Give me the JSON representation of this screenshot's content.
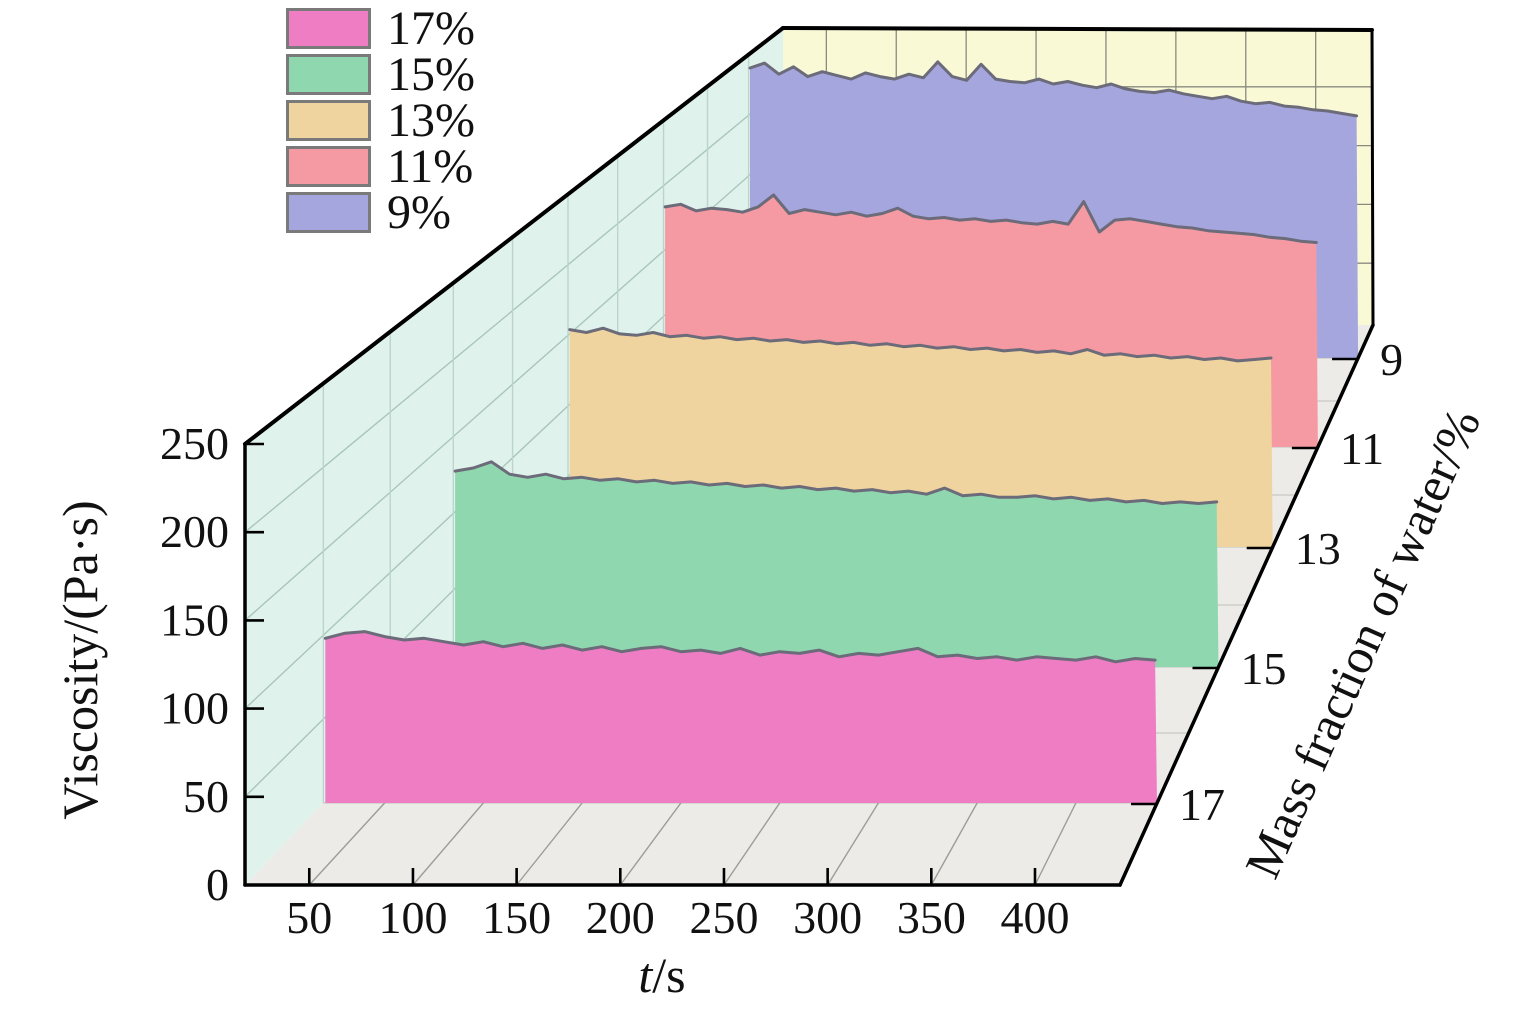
{
  "legend": {
    "items": [
      {
        "label": "17%",
        "color": "#EE7DC4"
      },
      {
        "label": "15%",
        "color": "#8FD7AF"
      },
      {
        "label": "13%",
        "color": "#F0D4A0"
      },
      {
        "label": "11%",
        "color": "#F59AA3"
      },
      {
        "label": "9%",
        "color": "#A6A6DF"
      }
    ]
  },
  "axes": {
    "x": {
      "title_italic": "t",
      "title_rest": "/s"
    },
    "y": {
      "title": "Viscosity/(Pa·s)"
    },
    "z": {
      "title": "Mass fraction of water/%"
    }
  },
  "chart_data": {
    "type": "area",
    "projection": "3d-waterfall-perspective",
    "xlabel": "t/s",
    "ylabel": "Viscosity/(Pa·s)",
    "zlabel": "Mass fraction of water/%",
    "x_range": [
      19,
      441
    ],
    "y_range": [
      0,
      250
    ],
    "x_ticks": [
      50,
      100,
      150,
      200,
      250,
      300,
      350,
      400
    ],
    "y_ticks": [
      0,
      50,
      100,
      150,
      200,
      250
    ],
    "z_ticks": [
      9,
      11,
      13,
      15,
      17
    ],
    "grid": true,
    "legend_position": "top-left",
    "t": [
      20,
      30,
      40,
      50,
      60,
      70,
      80,
      90,
      100,
      110,
      120,
      130,
      140,
      150,
      160,
      170,
      180,
      190,
      200,
      210,
      220,
      230,
      240,
      250,
      260,
      270,
      280,
      290,
      300,
      310,
      320,
      330,
      340,
      350,
      360,
      370,
      380,
      390,
      400,
      410,
      420,
      430,
      440
    ],
    "series": [
      {
        "name": "17%",
        "z": 17,
        "color": "#EE7DC4",
        "values": [
          98,
          101,
          102,
          99,
          97,
          98,
          96,
          94,
          96,
          93,
          95,
          92,
          94,
          91,
          93,
          90,
          92,
          93,
          90,
          91,
          89,
          92,
          88,
          90,
          89,
          91,
          87,
          89,
          88,
          90,
          92,
          87,
          88,
          86,
          87,
          85,
          87,
          86,
          85,
          87,
          84,
          86,
          85
        ]
      },
      {
        "name": "15%",
        "z": 15,
        "color": "#8FD7AF",
        "values": [
          127,
          129,
          133,
          125,
          123,
          125,
          122,
          123,
          121,
          122,
          120,
          121,
          119,
          120,
          118,
          119,
          117,
          118,
          116,
          117,
          115,
          116,
          114,
          115,
          113,
          114,
          112,
          116,
          111,
          112,
          110,
          110,
          111,
          109,
          110,
          108,
          109,
          107,
          108,
          106,
          107,
          106,
          107
        ]
      },
      {
        "name": "13%",
        "z": 13,
        "color": "#F0D4A0",
        "values": [
          153,
          151,
          154,
          150,
          149,
          151,
          148,
          149,
          147,
          148,
          146,
          147,
          145,
          146,
          144,
          145,
          143,
          144,
          142,
          143,
          141,
          142,
          140,
          141,
          139,
          140,
          138,
          139,
          137,
          138,
          136,
          139,
          135,
          136,
          134,
          135,
          133,
          134,
          132,
          133,
          131,
          132,
          133
        ]
      },
      {
        "name": "11%",
        "z": 11,
        "color": "#F59AA3",
        "values": [
          182,
          184,
          179,
          181,
          180,
          178,
          182,
          191,
          177,
          180,
          178,
          176,
          178,
          175,
          177,
          181,
          175,
          173,
          174,
          172,
          173,
          171,
          172,
          170,
          169,
          171,
          169,
          186,
          163,
          172,
          173,
          171,
          169,
          167,
          166,
          164,
          163,
          162,
          161,
          159,
          158,
          156,
          155
        ]
      },
      {
        "name": "9%",
        "z": 9,
        "color": "#A6A6DF",
        "values": [
          236,
          240,
          231,
          237,
          229,
          233,
          230,
          227,
          232,
          229,
          227,
          231,
          228,
          241,
          229,
          226,
          239,
          227,
          225,
          224,
          227,
          223,
          225,
          222,
          220,
          223,
          219,
          217,
          216,
          218,
          215,
          213,
          211,
          213,
          209,
          207,
          208,
          205,
          204,
          202,
          201,
          199,
          197
        ]
      }
    ],
    "wall_colors": {
      "left": "#E0F2EC",
      "back": "#F9F9D6",
      "floor": "#ECEBE8"
    },
    "line_color": "#6B6B7A"
  }
}
